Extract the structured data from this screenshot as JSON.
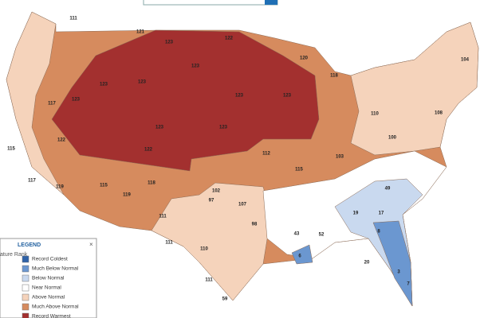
{
  "legend": {
    "title": "LEGEND",
    "close": "×",
    "side_label": "ature Rank",
    "items": [
      {
        "label": "Record Coldest",
        "color": "#2f62a8"
      },
      {
        "label": "Much Below Normal",
        "color": "#6b97d0"
      },
      {
        "label": "Below Normal",
        "color": "#c9d9ef"
      },
      {
        "label": "Near Normal",
        "color": "#ffffff"
      },
      {
        "label": "Above Normal",
        "color": "#f5d3bb"
      },
      {
        "label": "Much Above Normal",
        "color": "#d68b5e"
      },
      {
        "label": "Record Warmest",
        "color": "#a3302f"
      }
    ]
  },
  "map_labels": [
    111,
    121,
    123,
    123,
    123,
    123,
    123,
    123,
    123,
    123,
    123,
    120,
    118,
    122,
    117,
    122,
    115,
    117,
    119,
    115,
    119,
    122,
    118,
    111,
    111,
    110,
    107,
    102,
    97,
    112,
    115,
    103,
    100,
    110,
    108,
    104,
    6,
    43,
    49,
    8,
    3,
    7,
    19,
    17,
    52,
    20,
    59,
    98,
    111
  ]
}
